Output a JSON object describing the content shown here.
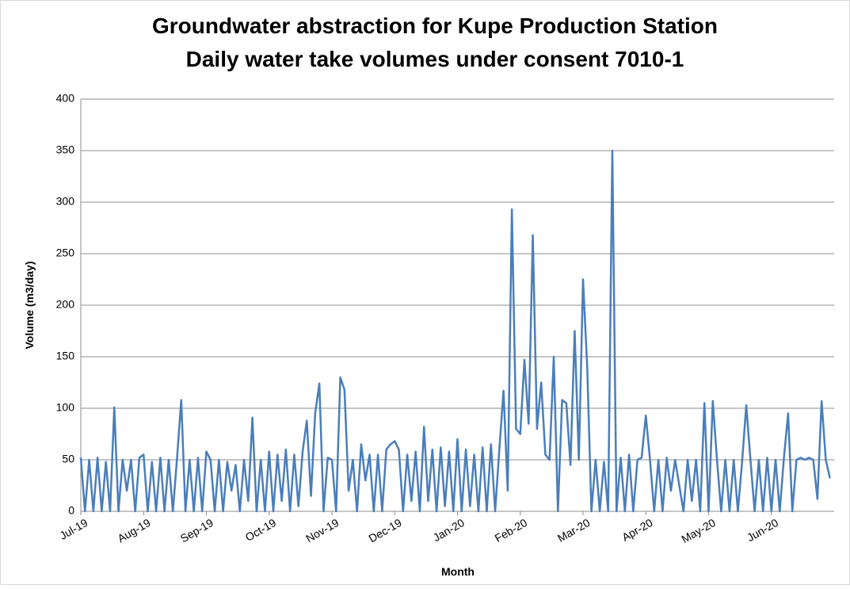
{
  "chart_data": {
    "type": "line",
    "title": "Groundwater abstraction for Kupe Production Station",
    "subtitle": "Daily water take volumes under consent 7010-1",
    "y_label": "Volume (m3/day)",
    "x_label": "Month",
    "categories": [
      "Jul-19",
      null,
      null,
      null,
      null,
      null,
      null,
      null,
      null,
      null,
      null,
      null,
      null,
      null,
      null,
      "Aug-19",
      null,
      null,
      null,
      null,
      null,
      null,
      null,
      null,
      null,
      null,
      null,
      null,
      null,
      null,
      "Sep-19",
      null,
      null,
      null,
      null,
      null,
      null,
      null,
      null,
      null,
      null,
      null,
      null,
      null,
      null,
      "Oct-19",
      null,
      null,
      null,
      null,
      null,
      null,
      null,
      null,
      null,
      null,
      null,
      null,
      null,
      null,
      "Nov-19",
      null,
      null,
      null,
      null,
      null,
      null,
      null,
      null,
      null,
      null,
      null,
      null,
      null,
      null,
      "Dec-19",
      null,
      null,
      null,
      null,
      null,
      null,
      null,
      null,
      null,
      null,
      null,
      null,
      null,
      null,
      "Jan-20",
      null,
      null,
      null,
      null,
      null,
      null,
      null,
      null,
      null,
      null,
      null,
      null,
      null,
      null,
      "Feb-20",
      null,
      null,
      null,
      null,
      null,
      null,
      null,
      null,
      null,
      null,
      null,
      null,
      null,
      null,
      "Mar-20",
      null,
      null,
      null,
      null,
      null,
      null,
      null,
      null,
      null,
      null,
      null,
      null,
      null,
      null,
      "Apr-20",
      null,
      null,
      null,
      null,
      null,
      null,
      null,
      null,
      null,
      null,
      null,
      null,
      null,
      null,
      "May-20",
      null,
      null,
      null,
      null,
      null,
      null,
      null,
      null,
      null,
      null,
      null,
      null,
      null,
      null,
      "Jun-20",
      null,
      null,
      null,
      null,
      null,
      null,
      null,
      null,
      null,
      null,
      null,
      null,
      null,
      null
    ],
    "series": [
      {
        "color": "#4a7ebb",
        "values": [
          52,
          0,
          50,
          0,
          52,
          0,
          48,
          0,
          101,
          0,
          50,
          20,
          50,
          0,
          52,
          55,
          0,
          48,
          0,
          52,
          0,
          50,
          0,
          52,
          108,
          0,
          50,
          0,
          52,
          0,
          58,
          50,
          0,
          50,
          0,
          48,
          20,
          45,
          0,
          50,
          10,
          91,
          0,
          50,
          0,
          58,
          0,
          55,
          10,
          60,
          0,
          55,
          5,
          58,
          88,
          15,
          95,
          124,
          0,
          52,
          50,
          0,
          130,
          118,
          20,
          50,
          0,
          65,
          30,
          55,
          0,
          55,
          0,
          60,
          65,
          68,
          60,
          0,
          55,
          10,
          58,
          0,
          82,
          10,
          60,
          0,
          62,
          5,
          58,
          0,
          70,
          0,
          60,
          5,
          55,
          0,
          62,
          0,
          65,
          0,
          60,
          117,
          20,
          293,
          80,
          75,
          147,
          85,
          268,
          80,
          125,
          55,
          50,
          150,
          0,
          108,
          105,
          45,
          175,
          50,
          225,
          140,
          0,
          50,
          0,
          48,
          0,
          350,
          0,
          52,
          0,
          55,
          0,
          50,
          52,
          93,
          50,
          0,
          50,
          0,
          52,
          20,
          50,
          25,
          0,
          50,
          10,
          50,
          0,
          105,
          0,
          107,
          50,
          0,
          50,
          0,
          50,
          0,
          48,
          103,
          50,
          0,
          50,
          0,
          52,
          0,
          50,
          0,
          52,
          95,
          0,
          50,
          52,
          50,
          52,
          50,
          12,
          107,
          50,
          32
        ]
      }
    ],
    "ylim": [
      0,
      400
    ],
    "yticks": [
      0,
      50,
      100,
      150,
      200,
      250,
      300,
      350,
      400
    ],
    "grid": true
  }
}
